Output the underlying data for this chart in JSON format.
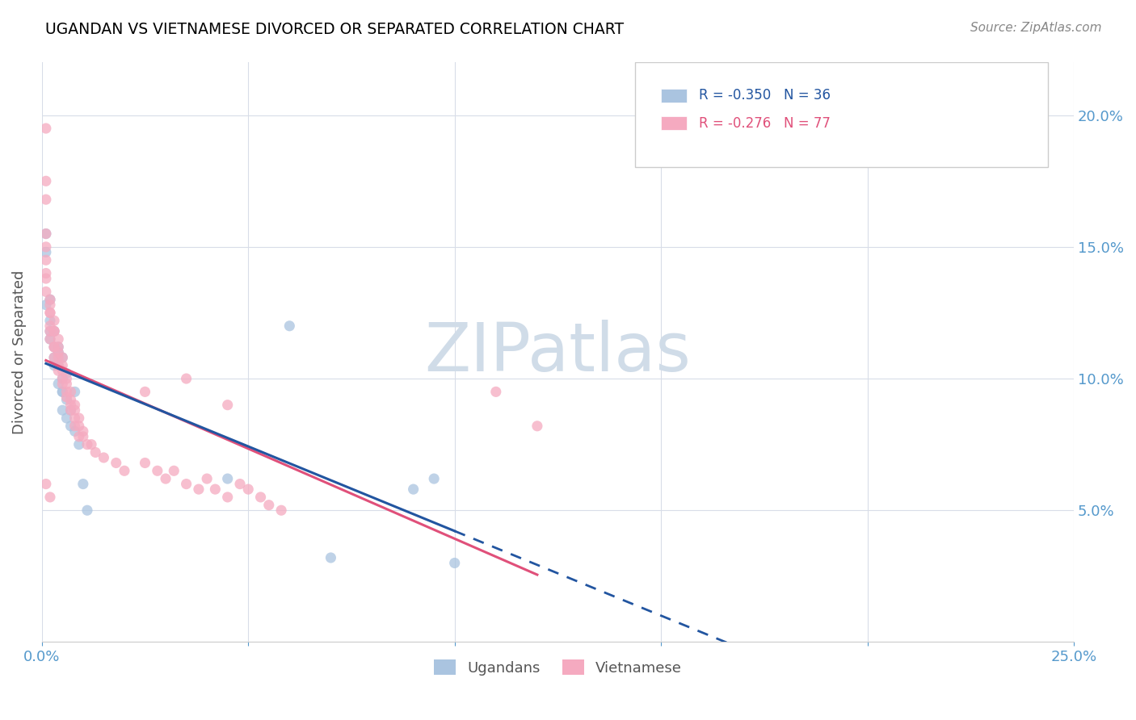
{
  "title": "UGANDAN VS VIETNAMESE DIVORCED OR SEPARATED CORRELATION CHART",
  "source": "Source: ZipAtlas.com",
  "ylabel": "Divorced or Separated",
  "legend_blue_r": "R = -0.350",
  "legend_blue_n": "N = 36",
  "legend_pink_r": "R = -0.276",
  "legend_pink_n": "N = 77",
  "legend_blue_label": "Ugandans",
  "legend_pink_label": "Vietnamese",
  "blue_color": "#aac4e0",
  "pink_color": "#f5aac0",
  "blue_line_color": "#2255a0",
  "pink_line_color": "#e0507a",
  "blue_r_color": "#2255a0",
  "pink_r_color": "#e0507a",
  "watermark_color": "#d0dce8",
  "grid_color": "#d8dde8",
  "tick_color": "#5599cc",
  "ugandan_points": [
    [
      0.001,
      0.128
    ],
    [
      0.001,
      0.148
    ],
    [
      0.001,
      0.155
    ],
    [
      0.002,
      0.118
    ],
    [
      0.002,
      0.122
    ],
    [
      0.002,
      0.13
    ],
    [
      0.002,
      0.115
    ],
    [
      0.003,
      0.112
    ],
    [
      0.003,
      0.108
    ],
    [
      0.003,
      0.118
    ],
    [
      0.003,
      0.105
    ],
    [
      0.004,
      0.112
    ],
    [
      0.004,
      0.098
    ],
    [
      0.004,
      0.105
    ],
    [
      0.004,
      0.11
    ],
    [
      0.005,
      0.095
    ],
    [
      0.005,
      0.108
    ],
    [
      0.005,
      0.1
    ],
    [
      0.005,
      0.095
    ],
    [
      0.005,
      0.088
    ],
    [
      0.006,
      0.102
    ],
    [
      0.006,
      0.085
    ],
    [
      0.006,
      0.092
    ],
    [
      0.007,
      0.088
    ],
    [
      0.007,
      0.082
    ],
    [
      0.008,
      0.095
    ],
    [
      0.008,
      0.08
    ],
    [
      0.009,
      0.075
    ],
    [
      0.01,
      0.06
    ],
    [
      0.011,
      0.05
    ],
    [
      0.06,
      0.12
    ],
    [
      0.045,
      0.062
    ],
    [
      0.09,
      0.058
    ],
    [
      0.07,
      0.032
    ],
    [
      0.095,
      0.062
    ],
    [
      0.1,
      0.03
    ]
  ],
  "vietnamese_points": [
    [
      0.001,
      0.195
    ],
    [
      0.001,
      0.175
    ],
    [
      0.001,
      0.168
    ],
    [
      0.001,
      0.155
    ],
    [
      0.001,
      0.15
    ],
    [
      0.001,
      0.145
    ],
    [
      0.001,
      0.14
    ],
    [
      0.001,
      0.138
    ],
    [
      0.001,
      0.133
    ],
    [
      0.002,
      0.128
    ],
    [
      0.002,
      0.13
    ],
    [
      0.002,
      0.125
    ],
    [
      0.002,
      0.12
    ],
    [
      0.002,
      0.125
    ],
    [
      0.002,
      0.118
    ],
    [
      0.002,
      0.115
    ],
    [
      0.003,
      0.122
    ],
    [
      0.003,
      0.118
    ],
    [
      0.003,
      0.112
    ],
    [
      0.003,
      0.118
    ],
    [
      0.003,
      0.112
    ],
    [
      0.003,
      0.108
    ],
    [
      0.004,
      0.115
    ],
    [
      0.004,
      0.11
    ],
    [
      0.004,
      0.105
    ],
    [
      0.004,
      0.112
    ],
    [
      0.004,
      0.108
    ],
    [
      0.004,
      0.103
    ],
    [
      0.005,
      0.108
    ],
    [
      0.005,
      0.103
    ],
    [
      0.005,
      0.098
    ],
    [
      0.005,
      0.105
    ],
    [
      0.005,
      0.1
    ],
    [
      0.006,
      0.1
    ],
    [
      0.006,
      0.095
    ],
    [
      0.006,
      0.098
    ],
    [
      0.006,
      0.093
    ],
    [
      0.007,
      0.095
    ],
    [
      0.007,
      0.09
    ],
    [
      0.007,
      0.092
    ],
    [
      0.007,
      0.088
    ],
    [
      0.008,
      0.09
    ],
    [
      0.008,
      0.085
    ],
    [
      0.008,
      0.088
    ],
    [
      0.008,
      0.082
    ],
    [
      0.009,
      0.085
    ],
    [
      0.009,
      0.082
    ],
    [
      0.009,
      0.078
    ],
    [
      0.01,
      0.08
    ],
    [
      0.01,
      0.078
    ],
    [
      0.011,
      0.075
    ],
    [
      0.012,
      0.075
    ],
    [
      0.013,
      0.072
    ],
    [
      0.015,
      0.07
    ],
    [
      0.018,
      0.068
    ],
    [
      0.02,
      0.065
    ],
    [
      0.025,
      0.068
    ],
    [
      0.028,
      0.065
    ],
    [
      0.03,
      0.062
    ],
    [
      0.032,
      0.065
    ],
    [
      0.035,
      0.06
    ],
    [
      0.038,
      0.058
    ],
    [
      0.04,
      0.062
    ],
    [
      0.042,
      0.058
    ],
    [
      0.045,
      0.055
    ],
    [
      0.048,
      0.06
    ],
    [
      0.05,
      0.058
    ],
    [
      0.053,
      0.055
    ],
    [
      0.055,
      0.052
    ],
    [
      0.058,
      0.05
    ],
    [
      0.035,
      0.1
    ],
    [
      0.045,
      0.09
    ],
    [
      0.025,
      0.095
    ],
    [
      0.11,
      0.095
    ],
    [
      0.12,
      0.082
    ],
    [
      0.001,
      0.06
    ],
    [
      0.002,
      0.055
    ]
  ],
  "xlim": [
    0.0,
    0.25
  ],
  "ylim": [
    0.0,
    0.22
  ],
  "x_ticks": [
    0.0,
    0.05,
    0.1,
    0.15,
    0.2,
    0.25
  ],
  "x_tick_labels_show": [
    "0.0%",
    "",
    "",
    "",
    "",
    "25.0%"
  ],
  "y_tick_vals": [
    0.0,
    0.05,
    0.1,
    0.15,
    0.2
  ],
  "y_tick_labels_right": [
    "",
    "5.0%",
    "10.0%",
    "15.0%",
    "20.0%"
  ]
}
